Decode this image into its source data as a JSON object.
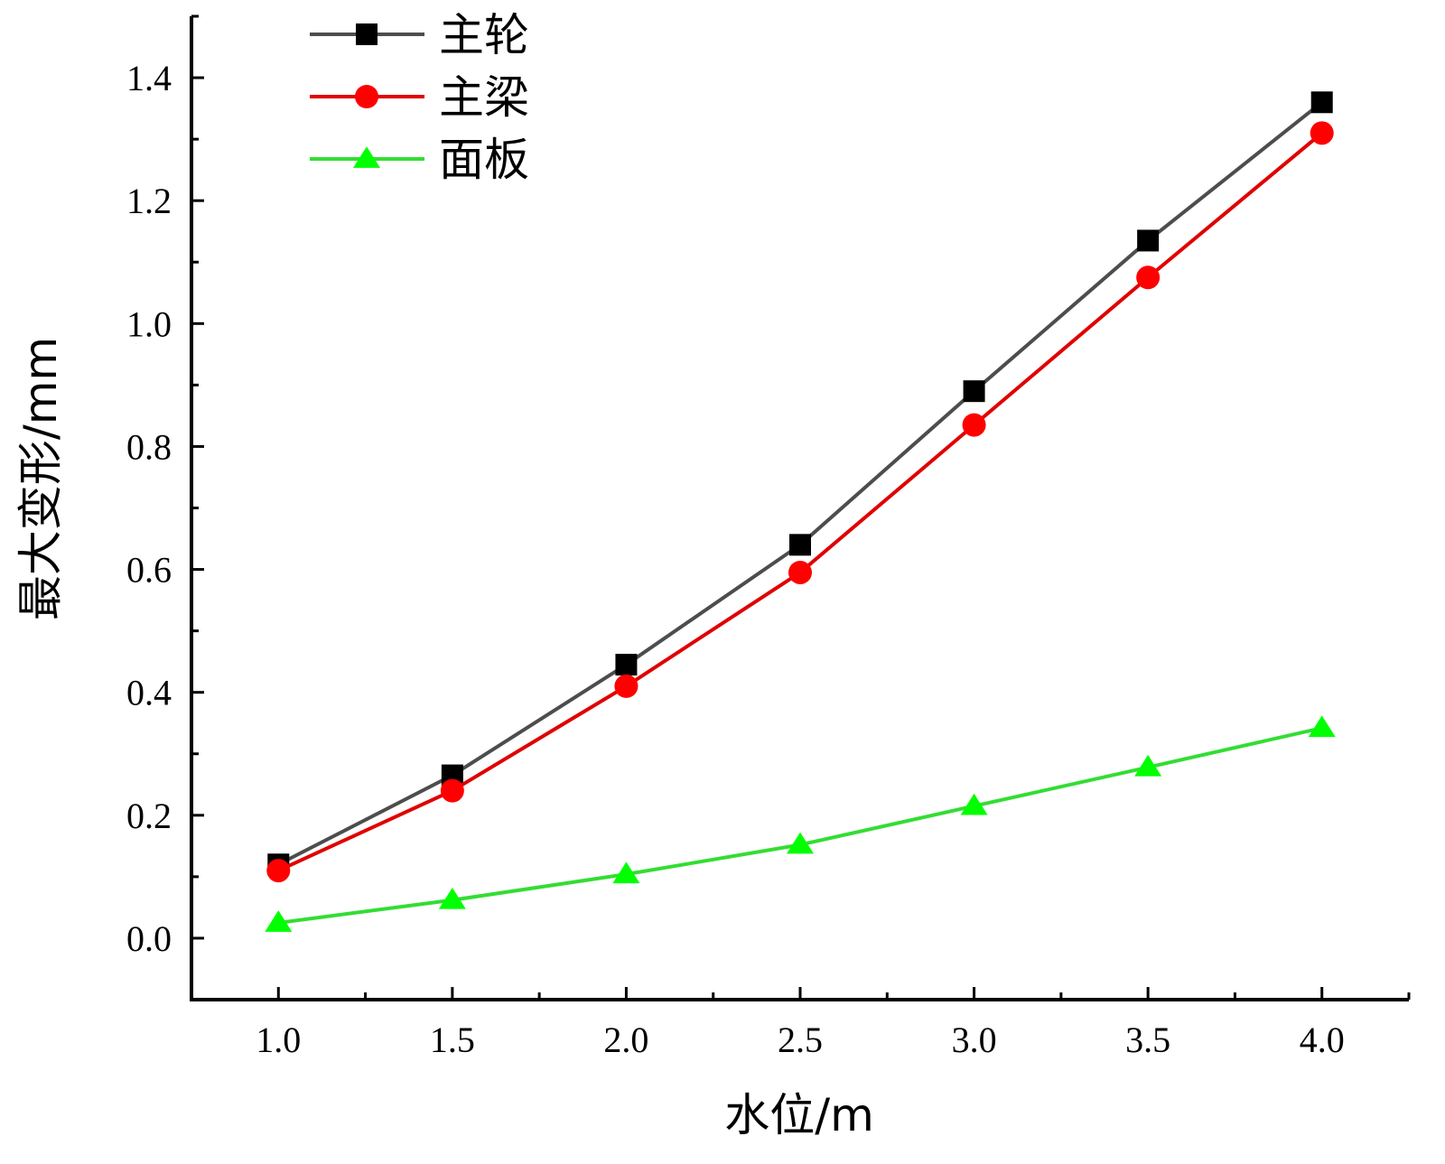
{
  "chart_data": {
    "type": "line",
    "xlabel": "水位/m",
    "ylabel": "最大变形/mm",
    "x": [
      1.0,
      1.5,
      2.0,
      2.5,
      3.0,
      3.5,
      4.0
    ],
    "xlim": [
      0.75,
      4.25
    ],
    "ylim": [
      -0.1,
      1.5
    ],
    "xticks": [
      1.0,
      1.5,
      2.0,
      2.5,
      3.0,
      3.5,
      4.0
    ],
    "xtick_labels": [
      "1.0",
      "1.5",
      "2.0",
      "2.5",
      "3.0",
      "3.5",
      "4.0"
    ],
    "yticks": [
      0.0,
      0.2,
      0.4,
      0.6,
      0.8,
      1.0,
      1.2,
      1.4
    ],
    "ytick_labels": [
      "0.0",
      "0.2",
      "0.4",
      "0.6",
      "0.8",
      "1.0",
      "1.2",
      "1.4"
    ],
    "grid": false,
    "legend_position": "top-left",
    "series": [
      {
        "name": "主轮",
        "color": "#4d4d4d",
        "marker_color": "#000000",
        "marker": "square",
        "values": [
          0.12,
          0.265,
          0.445,
          0.64,
          0.89,
          1.135,
          1.36
        ]
      },
      {
        "name": "主梁",
        "color": "#e00000",
        "marker_color": "#ff0000",
        "marker": "circle",
        "values": [
          0.11,
          0.24,
          0.41,
          0.595,
          0.835,
          1.075,
          1.31
        ]
      },
      {
        "name": "面板",
        "color": "#33dd33",
        "marker_color": "#00ff00",
        "marker": "triangle",
        "values": [
          0.025,
          0.062,
          0.104,
          0.152,
          0.215,
          0.278,
          0.342
        ]
      }
    ]
  }
}
